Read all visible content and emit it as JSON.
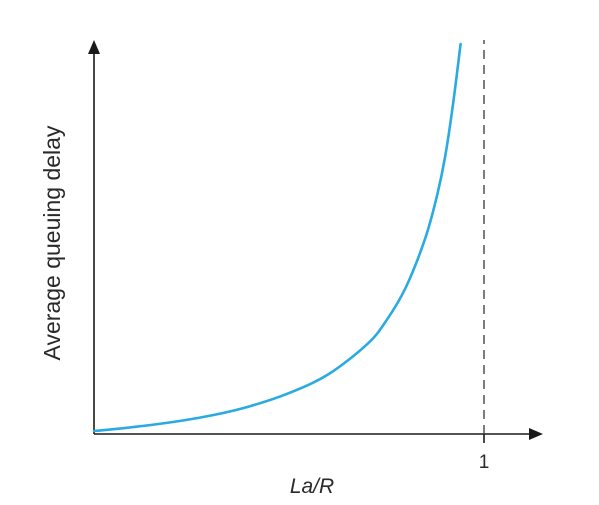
{
  "chart_data": {
    "type": "line",
    "title": "",
    "xlabel": "La/R",
    "ylabel": "Average queuing delay",
    "x_ticks": [
      1
    ],
    "x_tick_labels": [
      "1"
    ],
    "xlim": [
      0,
      1.14
    ],
    "ylim": [
      0,
      1
    ],
    "grid": false,
    "asymptote_x": 1,
    "series": [
      {
        "x": [
          0,
          0.1,
          0.2,
          0.3,
          0.4,
          0.5,
          0.6,
          0.7,
          0.75,
          0.8,
          0.85,
          0.88,
          0.9,
          0.92,
          0.94,
          0.95,
          0.96,
          0.97
        ],
        "y": [
          0.0,
          0.01,
          0.023,
          0.04,
          0.064,
          0.098,
          0.146,
          0.224,
          0.286,
          0.372,
          0.5,
          0.61,
          0.707,
          0.84,
          1.0,
          1.0,
          1.0,
          1.0
        ],
        "color": "#29ABE2"
      }
    ]
  }
}
